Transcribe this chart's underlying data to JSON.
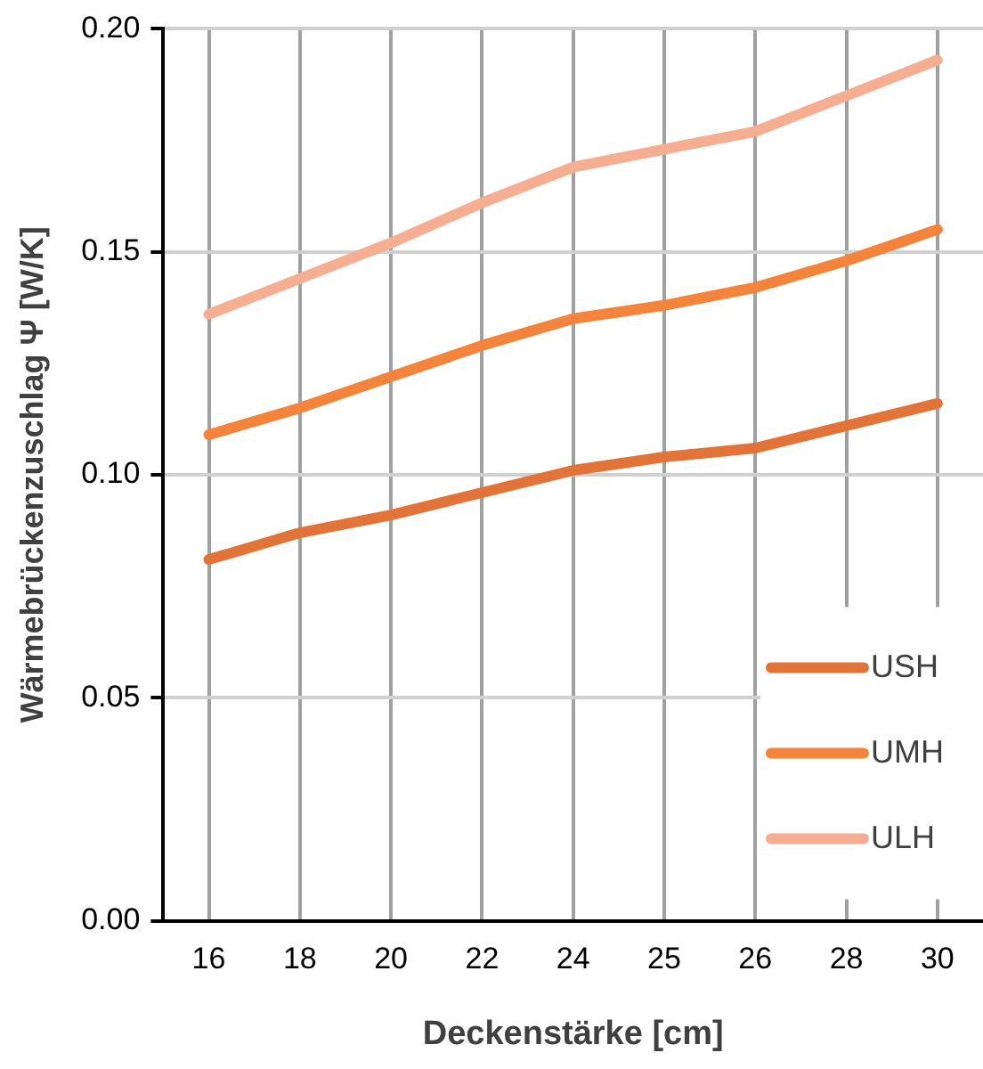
{
  "chart_data": {
    "type": "line",
    "xlabel": "Deckenstärke [cm]",
    "ylabel": "Wärmebrückenzuschlag Ψ [W/K]",
    "categories": [
      "16",
      "18",
      "20",
      "22",
      "24",
      "25",
      "26",
      "28",
      "30"
    ],
    "series": [
      {
        "name": "USH",
        "color": "#e2743a",
        "values": [
          0.081,
          0.087,
          0.091,
          0.096,
          0.101,
          0.104,
          0.106,
          0.111,
          0.116
        ]
      },
      {
        "name": "UMH",
        "color": "#f4843c",
        "values": [
          0.109,
          0.115,
          0.122,
          0.129,
          0.135,
          0.138,
          0.142,
          0.148,
          0.155
        ]
      },
      {
        "name": "ULH",
        "color": "#f5ae92",
        "values": [
          0.136,
          0.144,
          0.152,
          0.161,
          0.169,
          0.173,
          0.177,
          0.185,
          0.193
        ]
      }
    ],
    "ylim": [
      0,
      0.2
    ],
    "yticks": [
      {
        "value": 0,
        "label": "0.00"
      },
      {
        "value": 0.05,
        "label": "0.05"
      },
      {
        "value": 0.1,
        "label": "0.10"
      },
      {
        "value": 0.15,
        "label": "0.15"
      },
      {
        "value": 0.2,
        "label": "0.20"
      }
    ],
    "grid": true,
    "legend": "bottom right",
    "marker": "none",
    "line_style": "solid"
  }
}
